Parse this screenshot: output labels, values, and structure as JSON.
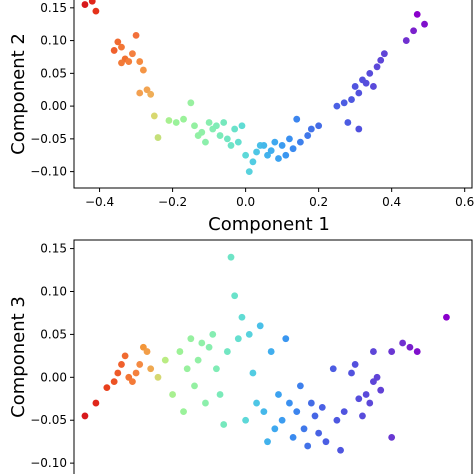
{
  "chart_data": [
    {
      "type": "scatter",
      "xlabel": "Component 1",
      "ylabel": "Component 2",
      "xlim": [
        -0.47,
        0.62
      ],
      "ylim": [
        -0.125,
        0.165
      ],
      "xticks": [
        "−0.4",
        "−0.2",
        "0.0",
        "0.2",
        "0.4",
        "0.6"
      ],
      "xtick_values": [
        -0.4,
        -0.2,
        0.0,
        0.2,
        0.4,
        0.6
      ],
      "yticks": [
        "−0.10",
        "−0.05",
        "0.00",
        "0.05",
        "0.10",
        "0.15"
      ],
      "ytick_values": [
        -0.1,
        -0.05,
        0.0,
        0.05,
        0.1,
        0.15
      ],
      "colormap": "rainbow",
      "points": [
        {
          "x": -0.44,
          "y": 0.155,
          "color": "#d7191c"
        },
        {
          "x": -0.42,
          "y": 0.16,
          "color": "#e0261a"
        },
        {
          "x": -0.41,
          "y": 0.145,
          "color": "#e5321a"
        },
        {
          "x": -0.36,
          "y": 0.085,
          "color": "#f0602d"
        },
        {
          "x": -0.35,
          "y": 0.098,
          "color": "#f06a30"
        },
        {
          "x": -0.34,
          "y": 0.09,
          "color": "#f27635"
        },
        {
          "x": -0.33,
          "y": 0.072,
          "color": "#f07030"
        },
        {
          "x": -0.34,
          "y": 0.066,
          "color": "#f27a38"
        },
        {
          "x": -0.32,
          "y": 0.068,
          "color": "#f47e3a"
        },
        {
          "x": -0.31,
          "y": 0.08,
          "color": "#f48040"
        },
        {
          "x": -0.3,
          "y": 0.108,
          "color": "#f2703a"
        },
        {
          "x": -0.29,
          "y": 0.068,
          "color": "#f58a40"
        },
        {
          "x": -0.28,
          "y": 0.055,
          "color": "#f49545"
        },
        {
          "x": -0.29,
          "y": 0.02,
          "color": "#f3a050"
        },
        {
          "x": -0.27,
          "y": 0.025,
          "color": "#f2a452"
        },
        {
          "x": -0.26,
          "y": 0.018,
          "color": "#efae58"
        },
        {
          "x": -0.25,
          "y": -0.015,
          "color": "#d8d870"
        },
        {
          "x": -0.24,
          "y": -0.048,
          "color": "#c5e07a"
        },
        {
          "x": -0.21,
          "y": -0.022,
          "color": "#a8f090"
        },
        {
          "x": -0.19,
          "y": -0.025,
          "color": "#9af29a"
        },
        {
          "x": -0.17,
          "y": -0.02,
          "color": "#9af29a"
        },
        {
          "x": -0.15,
          "y": 0.005,
          "color": "#98f0a0"
        },
        {
          "x": -0.14,
          "y": -0.03,
          "color": "#94f0a2"
        },
        {
          "x": -0.13,
          "y": -0.045,
          "color": "#92f0a5"
        },
        {
          "x": -0.12,
          "y": -0.04,
          "color": "#90f0a8"
        },
        {
          "x": -0.11,
          "y": -0.055,
          "color": "#8cefab"
        },
        {
          "x": -0.1,
          "y": -0.025,
          "color": "#88eeae"
        },
        {
          "x": -0.09,
          "y": -0.035,
          "color": "#85edb2"
        },
        {
          "x": -0.08,
          "y": -0.03,
          "color": "#80ecb6"
        },
        {
          "x": -0.07,
          "y": -0.045,
          "color": "#7beab9"
        },
        {
          "x": -0.06,
          "y": -0.025,
          "color": "#76e8bd"
        },
        {
          "x": -0.05,
          "y": -0.05,
          "color": "#72e6c2"
        },
        {
          "x": -0.04,
          "y": -0.06,
          "color": "#6ee4c6"
        },
        {
          "x": -0.03,
          "y": -0.035,
          "color": "#6ae2ca"
        },
        {
          "x": -0.02,
          "y": -0.055,
          "color": "#65dfcf"
        },
        {
          "x": -0.01,
          "y": -0.03,
          "color": "#60dcd4"
        },
        {
          "x": 0.0,
          "y": -0.075,
          "color": "#5dd8d8"
        },
        {
          "x": 0.01,
          "y": -0.1,
          "color": "#58d2dd"
        },
        {
          "x": 0.02,
          "y": -0.085,
          "color": "#52cce2"
        },
        {
          "x": 0.03,
          "y": -0.07,
          "color": "#4ec6e5"
        },
        {
          "x": 0.04,
          "y": -0.06,
          "color": "#4ac0e8"
        },
        {
          "x": 0.05,
          "y": -0.06,
          "color": "#45b8ea"
        },
        {
          "x": 0.06,
          "y": -0.075,
          "color": "#42b2ec"
        },
        {
          "x": 0.07,
          "y": -0.068,
          "color": "#40aeee"
        },
        {
          "x": 0.08,
          "y": -0.055,
          "color": "#3ea8ef"
        },
        {
          "x": 0.09,
          "y": -0.08,
          "color": "#3ca2f0"
        },
        {
          "x": 0.1,
          "y": -0.06,
          "color": "#3c9cf0"
        },
        {
          "x": 0.11,
          "y": -0.075,
          "color": "#3a96f0"
        },
        {
          "x": 0.12,
          "y": -0.05,
          "color": "#3a90f0"
        },
        {
          "x": 0.13,
          "y": -0.065,
          "color": "#3a8aef"
        },
        {
          "x": 0.14,
          "y": -0.02,
          "color": "#3c85ee"
        },
        {
          "x": 0.15,
          "y": -0.055,
          "color": "#3e80ec"
        },
        {
          "x": 0.17,
          "y": -0.045,
          "color": "#4078ea"
        },
        {
          "x": 0.18,
          "y": -0.035,
          "color": "#4272e8"
        },
        {
          "x": 0.2,
          "y": -0.03,
          "color": "#446ce6"
        },
        {
          "x": 0.25,
          "y": 0.0,
          "color": "#4a60e4"
        },
        {
          "x": 0.27,
          "y": 0.005,
          "color": "#4c5ce2"
        },
        {
          "x": 0.29,
          "y": 0.01,
          "color": "#4e58e0"
        },
        {
          "x": 0.3,
          "y": 0.03,
          "color": "#5054df"
        },
        {
          "x": 0.31,
          "y": 0.02,
          "color": "#5252de"
        },
        {
          "x": 0.32,
          "y": 0.04,
          "color": "#5450dd"
        },
        {
          "x": 0.33,
          "y": 0.035,
          "color": "#564edc"
        },
        {
          "x": 0.34,
          "y": 0.05,
          "color": "#584cdb"
        },
        {
          "x": 0.35,
          "y": 0.03,
          "color": "#5a4ada"
        },
        {
          "x": 0.36,
          "y": 0.06,
          "color": "#5c48d9"
        },
        {
          "x": 0.37,
          "y": 0.07,
          "color": "#5e46d8"
        },
        {
          "x": 0.38,
          "y": 0.08,
          "color": "#6044d7"
        },
        {
          "x": 0.31,
          "y": -0.035,
          "color": "#5050de"
        },
        {
          "x": 0.28,
          "y": -0.025,
          "color": "#4c5ce2"
        },
        {
          "x": 0.44,
          "y": 0.1,
          "color": "#7030d0"
        },
        {
          "x": 0.46,
          "y": 0.115,
          "color": "#7a20cc"
        },
        {
          "x": 0.49,
          "y": 0.125,
          "color": "#8010cc"
        },
        {
          "x": 0.47,
          "y": 0.14,
          "color": "#8a00cc"
        }
      ]
    },
    {
      "type": "scatter",
      "xlabel": "",
      "ylabel": "Component 3",
      "xlim": [
        -0.47,
        0.62
      ],
      "ylim": [
        -0.115,
        0.16
      ],
      "yticks": [
        "−0.10",
        "−0.05",
        "0.00",
        "0.05",
        "0.10",
        "0.15"
      ],
      "ytick_values": [
        -0.1,
        -0.05,
        0.0,
        0.05,
        0.1,
        0.15
      ],
      "colormap": "rainbow",
      "points": [
        {
          "x": -0.44,
          "y": -0.045,
          "color": "#d7191c"
        },
        {
          "x": -0.41,
          "y": -0.03,
          "color": "#e0261a"
        },
        {
          "x": -0.38,
          "y": -0.012,
          "color": "#e8401c"
        },
        {
          "x": -0.36,
          "y": -0.005,
          "color": "#ec5224"
        },
        {
          "x": -0.35,
          "y": 0.005,
          "color": "#ee5a28"
        },
        {
          "x": -0.34,
          "y": 0.015,
          "color": "#f0602d"
        },
        {
          "x": -0.33,
          "y": 0.025,
          "color": "#f06a30"
        },
        {
          "x": -0.32,
          "y": 0.0,
          "color": "#f27635"
        },
        {
          "x": -0.31,
          "y": -0.005,
          "color": "#f47a38"
        },
        {
          "x": -0.3,
          "y": 0.005,
          "color": "#f4803c"
        },
        {
          "x": -0.29,
          "y": 0.015,
          "color": "#f48a42"
        },
        {
          "x": -0.28,
          "y": 0.035,
          "color": "#f3963a"
        },
        {
          "x": -0.27,
          "y": 0.03,
          "color": "#f29e48"
        },
        {
          "x": -0.26,
          "y": 0.01,
          "color": "#efa850"
        },
        {
          "x": -0.24,
          "y": 0.0,
          "color": "#d5d872"
        },
        {
          "x": -0.22,
          "y": 0.02,
          "color": "#baec82"
        },
        {
          "x": -0.2,
          "y": -0.02,
          "color": "#a8f090"
        },
        {
          "x": -0.18,
          "y": 0.03,
          "color": "#9cf296"
        },
        {
          "x": -0.17,
          "y": -0.04,
          "color": "#9af29a"
        },
        {
          "x": -0.16,
          "y": 0.01,
          "color": "#98f09e"
        },
        {
          "x": -0.15,
          "y": 0.045,
          "color": "#96f0a0"
        },
        {
          "x": -0.14,
          "y": -0.01,
          "color": "#94f0a2"
        },
        {
          "x": -0.13,
          "y": 0.02,
          "color": "#92f0a5"
        },
        {
          "x": -0.12,
          "y": 0.04,
          "color": "#90f0a8"
        },
        {
          "x": -0.11,
          "y": -0.03,
          "color": "#8cefab"
        },
        {
          "x": -0.1,
          "y": 0.035,
          "color": "#88eeae"
        },
        {
          "x": -0.09,
          "y": 0.05,
          "color": "#85edb2"
        },
        {
          "x": -0.08,
          "y": 0.01,
          "color": "#80ecb6"
        },
        {
          "x": -0.07,
          "y": -0.02,
          "color": "#7beab9"
        },
        {
          "x": -0.06,
          "y": -0.055,
          "color": "#76e8bd"
        },
        {
          "x": -0.05,
          "y": 0.03,
          "color": "#72e6c2"
        },
        {
          "x": -0.04,
          "y": 0.14,
          "color": "#6ee4c6"
        },
        {
          "x": -0.03,
          "y": 0.095,
          "color": "#6ae2ca"
        },
        {
          "x": -0.02,
          "y": 0.045,
          "color": "#65dfcf"
        },
        {
          "x": -0.01,
          "y": 0.07,
          "color": "#60dcd4"
        },
        {
          "x": 0.0,
          "y": -0.05,
          "color": "#5dd8d8"
        },
        {
          "x": 0.01,
          "y": 0.05,
          "color": "#58d2dd"
        },
        {
          "x": 0.02,
          "y": 0.005,
          "color": "#52cce2"
        },
        {
          "x": 0.03,
          "y": -0.03,
          "color": "#4ec6e5"
        },
        {
          "x": 0.04,
          "y": 0.06,
          "color": "#4ac0e8"
        },
        {
          "x": 0.05,
          "y": -0.04,
          "color": "#45b8ea"
        },
        {
          "x": 0.06,
          "y": -0.075,
          "color": "#42b2ec"
        },
        {
          "x": 0.07,
          "y": 0.03,
          "color": "#40aeee"
        },
        {
          "x": 0.08,
          "y": -0.06,
          "color": "#3ea8ef"
        },
        {
          "x": 0.09,
          "y": -0.02,
          "color": "#3ca2f0"
        },
        {
          "x": 0.1,
          "y": -0.05,
          "color": "#3c9cf0"
        },
        {
          "x": 0.11,
          "y": 0.045,
          "color": "#3a96f0"
        },
        {
          "x": 0.12,
          "y": -0.03,
          "color": "#3a90f0"
        },
        {
          "x": 0.13,
          "y": -0.07,
          "color": "#3a8aef"
        },
        {
          "x": 0.14,
          "y": -0.04,
          "color": "#3c85ee"
        },
        {
          "x": 0.15,
          "y": -0.01,
          "color": "#3e80ec"
        },
        {
          "x": 0.16,
          "y": -0.06,
          "color": "#4078ea"
        },
        {
          "x": 0.17,
          "y": -0.08,
          "color": "#4272e8"
        },
        {
          "x": 0.18,
          "y": -0.03,
          "color": "#446ce6"
        },
        {
          "x": 0.19,
          "y": -0.045,
          "color": "#4666e5"
        },
        {
          "x": 0.2,
          "y": -0.065,
          "color": "#4862e4"
        },
        {
          "x": 0.21,
          "y": -0.035,
          "color": "#4a60e4"
        },
        {
          "x": 0.22,
          "y": -0.075,
          "color": "#4b5ee3"
        },
        {
          "x": 0.24,
          "y": 0.01,
          "color": "#4c5ce2"
        },
        {
          "x": 0.25,
          "y": -0.05,
          "color": "#4e58e0"
        },
        {
          "x": 0.26,
          "y": -0.085,
          "color": "#4f56e0"
        },
        {
          "x": 0.27,
          "y": -0.04,
          "color": "#5054df"
        },
        {
          "x": 0.29,
          "y": 0.005,
          "color": "#5252de"
        },
        {
          "x": 0.3,
          "y": 0.015,
          "color": "#5450dd"
        },
        {
          "x": 0.31,
          "y": -0.025,
          "color": "#564edc"
        },
        {
          "x": 0.32,
          "y": -0.045,
          "color": "#584cdb"
        },
        {
          "x": 0.33,
          "y": -0.02,
          "color": "#5a4ada"
        },
        {
          "x": 0.34,
          "y": -0.03,
          "color": "#5c48d9"
        },
        {
          "x": 0.35,
          "y": -0.005,
          "color": "#5e46d8"
        },
        {
          "x": 0.36,
          "y": 0.0,
          "color": "#6044d7"
        },
        {
          "x": 0.37,
          "y": -0.015,
          "color": "#6242d6"
        },
        {
          "x": 0.35,
          "y": 0.03,
          "color": "#5e46d8"
        },
        {
          "x": 0.4,
          "y": 0.03,
          "color": "#6a36d2"
        },
        {
          "x": 0.43,
          "y": 0.04,
          "color": "#7030d0"
        },
        {
          "x": 0.45,
          "y": 0.035,
          "color": "#7820cc"
        },
        {
          "x": 0.47,
          "y": 0.03,
          "color": "#8010cc"
        },
        {
          "x": 0.4,
          "y": -0.07,
          "color": "#6838d2"
        },
        {
          "x": 0.55,
          "y": 0.07,
          "color": "#8a00cc"
        }
      ]
    }
  ]
}
